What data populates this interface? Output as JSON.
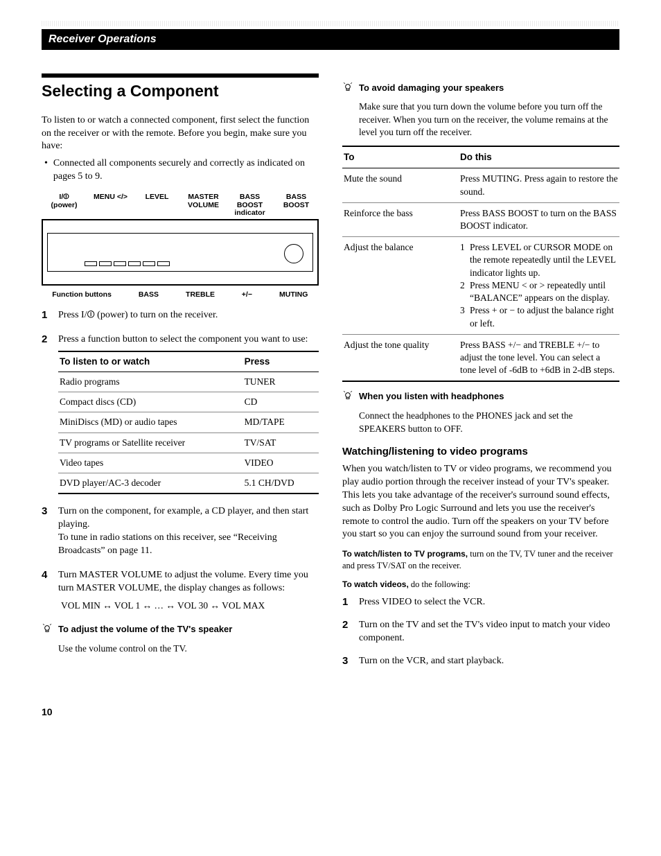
{
  "header": {
    "title": "Receiver Operations"
  },
  "left": {
    "h1": "Selecting a Component",
    "intro1": "To listen to or watch a connected component, first select the function on the receiver or with the remote. Before you begin, make sure you have:",
    "bullet1": "Connected all components securely and correctly as indicated on pages 5 to 9.",
    "diagram": {
      "top": {
        "c1a": "I/⏼",
        "c1b": "(power)",
        "c2": "MENU </>",
        "c3": "LEVEL",
        "c4a": "MASTER",
        "c4b": "VOLUME",
        "c5a": "BASS BOOST",
        "c5b": "indicator",
        "c6a": "BASS",
        "c6b": "BOOST"
      },
      "bot": {
        "b1": "Function buttons",
        "b2": "BASS",
        "b3": "TREBLE",
        "b4": "+/−",
        "b5": "MUTING"
      }
    },
    "step1": "Press I/⏼ (power) to turn on the receiver.",
    "step2_lead": "Press a function button to select the component you want to use:",
    "fn_table": {
      "h1": "To listen to or watch",
      "h2": "Press",
      "rows": [
        [
          "Radio programs",
          "TUNER"
        ],
        [
          "Compact discs (CD)",
          "CD"
        ],
        [
          "MiniDiscs (MD) or audio tapes",
          "MD/TAPE"
        ],
        [
          "TV programs or Satellite receiver",
          "TV/SAT"
        ],
        [
          "Video tapes",
          "VIDEO"
        ],
        [
          "DVD player/AC-3 decoder",
          "5.1 CH/DVD"
        ]
      ]
    },
    "step3": "Turn on the component, for example, a CD player, and then start playing.\nTo tune in radio stations on this receiver, see “Receiving Broadcasts” on page 11.",
    "step4": "Turn MASTER VOLUME to adjust the volume. Every time you turn MASTER VOLUME, the display changes as follows:",
    "vol": "VOL MIN ↔ VOL 1 ↔ … ↔ VOL 30 ↔ VOL MAX",
    "tip1_head": "To adjust the volume of the TV's speaker",
    "tip1_body": "Use the volume control on the TV."
  },
  "right": {
    "tip2_head": "To avoid damaging your speakers",
    "tip2_body": "Make sure that you turn down the volume before you turn off the receiver. When you turn on the receiver, the volume remains at the level you turn off the receiver.",
    "ops_table": {
      "h1": "To",
      "h2": "Do this",
      "rows": [
        {
          "to": "Mute the sound",
          "do": "Press MUTING. Press again to restore the sound."
        },
        {
          "to": "Reinforce the bass",
          "do": "Press BASS BOOST to turn on the BASS BOOST indicator."
        },
        {
          "to": "Adjust the balance",
          "list": [
            "Press LEVEL or CURSOR MODE on the remote repeatedly until the LEVEL indicator lights up.",
            "Press MENU < or > repeatedly until “BALANCE” appears on the display.",
            "Press + or − to adjust the balance right or left."
          ]
        },
        {
          "to": "Adjust the tone quality",
          "do": "Press BASS +/− and TREBLE +/− to adjust the tone level. You can select a tone level of ‑6dB to +6dB in 2-dB steps."
        }
      ]
    },
    "tip3_head": "When you listen with headphones",
    "tip3_body": "Connect the headphones to the PHONES jack and set the SPEAKERS button to OFF.",
    "h2": "Watching/listening to video programs",
    "para1": "When you watch/listen to TV or video programs, we recommend you play audio portion through the receiver instead of your TV's speaker. This lets you take advantage of the receiver's surround sound effects, such as Dolby Pro Logic Surround and lets you use the receiver's remote to control the audio. Turn off the speakers on your TV before you start so you can enjoy the surround sound from your receiver.",
    "lead1_b": "To watch/listen to TV programs,",
    "lead1_r": " turn on the TV, TV tuner and the receiver and press TV/SAT on the receiver.",
    "lead2_b": "To watch videos,",
    "lead2_r": " do the following:",
    "steps2": [
      "Press VIDEO to select the VCR.",
      "Turn on the TV and set the TV's video input to match your video component.",
      "Turn on the VCR, and start playback."
    ]
  },
  "page_number": "10"
}
